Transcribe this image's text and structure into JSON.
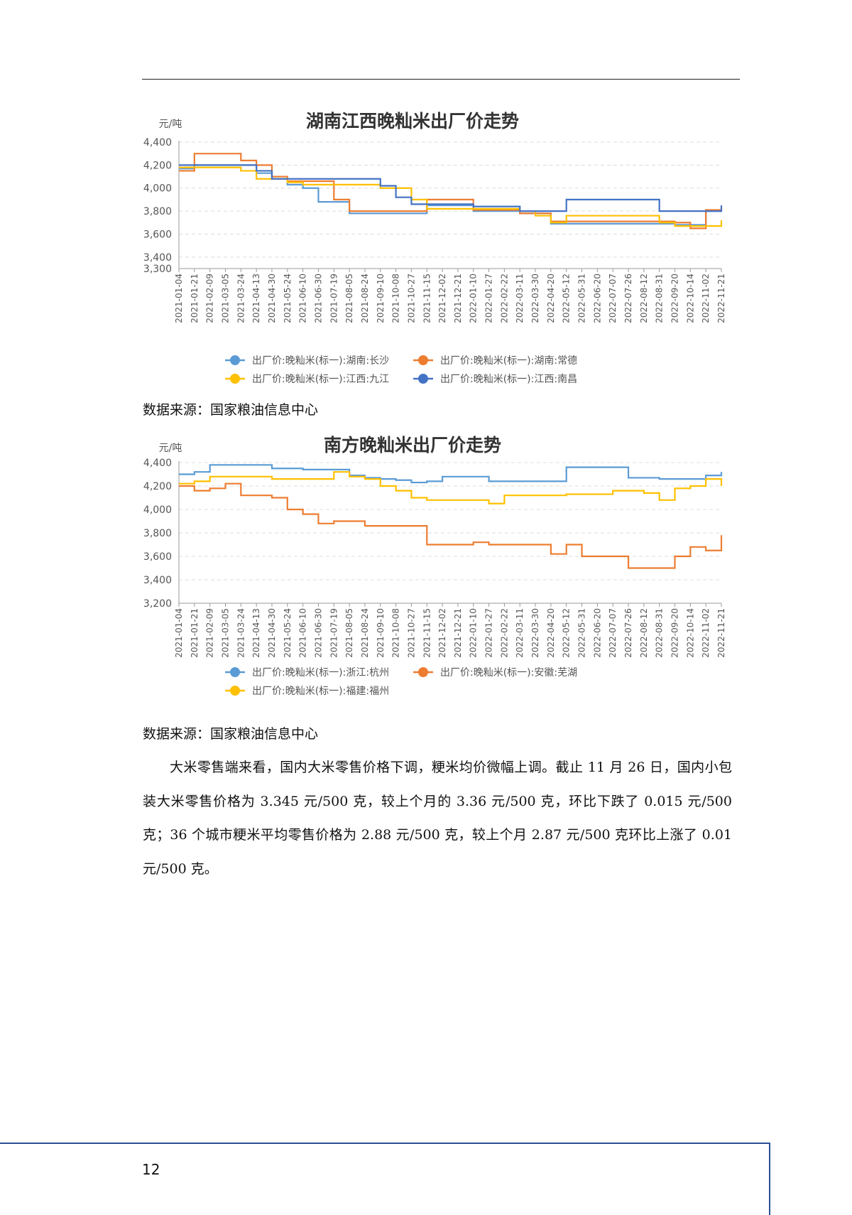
{
  "page_number": "12",
  "source_1": "数据来源：国家粮油信息中心",
  "source_2": "数据来源：国家粮油信息中心",
  "paragraph": "大米零售端来看，国内大米零售价格下调，粳米均价微幅上调。截止 11 月 26 日，国内小包装大米零售价格为 3.345 元/500 克，较上个月的 3.36 元/500 克，环比下跌了 0.015 元/500 克；36 个城市粳米平均零售价格为 2.88 元/500 克，较上个月 2.87 元/500 克环比上涨了 0.01 元/500 克。",
  "chart_data": [
    {
      "type": "line",
      "title": "湖南江西晚籼米出厂价走势",
      "ylabel": "元/吨",
      "ylim": [
        3300,
        4400
      ],
      "yticks": [
        4400,
        4200,
        4000,
        3800,
        3600,
        3400,
        3300
      ],
      "x": [
        "2021-01-04",
        "2021-01-21",
        "2021-02-09",
        "2021-03-05",
        "2021-03-24",
        "2021-04-13",
        "2021-04-30",
        "2021-05-24",
        "2021-06-10",
        "2021-06-30",
        "2021-07-19",
        "2021-08-05",
        "2021-08-24",
        "2021-09-10",
        "2021-10-08",
        "2021-10-27",
        "2021-11-15",
        "2021-12-02",
        "2021-12-21",
        "2022-01-10",
        "2022-01-27",
        "2022-02-22",
        "2022-03-11",
        "2022-03-30",
        "2022-04-20",
        "2022-05-12",
        "2022-05-31",
        "2022-06-20",
        "2022-07-07",
        "2022-07-26",
        "2022-08-12",
        "2022-08-31",
        "2022-09-20",
        "2022-10-14",
        "2022-11-02",
        "2022-11-21"
      ],
      "grid": true,
      "legend_position": "bottom",
      "series": [
        {
          "name": "出厂价:晚籼米(标一):湖南:长沙",
          "color": "#5b9bd5",
          "values": [
            4170,
            4200,
            4200,
            4200,
            4200,
            4130,
            4080,
            4030,
            4000,
            3880,
            3880,
            3780,
            3780,
            3780,
            3780,
            3780,
            3850,
            3850,
            3850,
            3800,
            3800,
            3800,
            3780,
            3780,
            3690,
            3690,
            3690,
            3690,
            3690,
            3690,
            3690,
            3690,
            3680,
            3680,
            3800,
            3800
          ]
        },
        {
          "name": "出厂价:晚籼米(标一):湖南:常德",
          "color": "#ed7d31",
          "values": [
            4150,
            4300,
            4300,
            4300,
            4240,
            4200,
            4100,
            4060,
            4060,
            4060,
            3900,
            3800,
            3800,
            3800,
            3800,
            3800,
            3900,
            3900,
            3900,
            3810,
            3810,
            3810,
            3780,
            3780,
            3710,
            3710,
            3710,
            3710,
            3710,
            3710,
            3710,
            3710,
            3700,
            3650,
            3810,
            3810
          ]
        },
        {
          "name": "出厂价:晚籼米(标一):江西:九江",
          "color": "#ffc000",
          "values": [
            4180,
            4180,
            4180,
            4180,
            4150,
            4080,
            4080,
            4050,
            4030,
            4030,
            4030,
            4030,
            4030,
            4000,
            4000,
            3900,
            3820,
            3820,
            3820,
            3820,
            3820,
            3820,
            3800,
            3760,
            3700,
            3760,
            3760,
            3760,
            3760,
            3760,
            3760,
            3700,
            3670,
            3670,
            3670,
            3720
          ]
        },
        {
          "name": "出厂价:晚籼米(标一):江西:南昌",
          "color": "#4472c4",
          "values": [
            4200,
            4200,
            4200,
            4200,
            4200,
            4150,
            4080,
            4080,
            4080,
            4080,
            4080,
            4080,
            4080,
            4020,
            3920,
            3860,
            3860,
            3860,
            3860,
            3840,
            3840,
            3840,
            3800,
            3800,
            3800,
            3900,
            3900,
            3900,
            3900,
            3900,
            3900,
            3800,
            3800,
            3800,
            3800,
            3850
          ]
        }
      ]
    },
    {
      "type": "line",
      "title": "南方晚籼米出厂价走势",
      "ylabel": "元/吨",
      "ylim": [
        3200,
        4400
      ],
      "yticks": [
        4400,
        4200,
        4000,
        3800,
        3600,
        3400,
        3200
      ],
      "x": [
        "2021-01-04",
        "2021-01-21",
        "2021-02-09",
        "2021-03-05",
        "2021-03-24",
        "2021-04-13",
        "2021-04-30",
        "2021-05-24",
        "2021-06-10",
        "2021-06-30",
        "2021-07-19",
        "2021-08-05",
        "2021-08-24",
        "2021-09-10",
        "2021-10-08",
        "2021-10-27",
        "2021-11-15",
        "2021-12-02",
        "2021-12-21",
        "2022-01-10",
        "2022-01-27",
        "2022-02-22",
        "2022-03-11",
        "2022-03-30",
        "2022-04-20",
        "2022-05-12",
        "2022-05-31",
        "2022-06-20",
        "2022-07-07",
        "2022-07-26",
        "2022-08-12",
        "2022-08-31",
        "2022-09-20",
        "2022-10-14",
        "2022-11-02",
        "2022-11-21"
      ],
      "grid": true,
      "legend_position": "bottom",
      "series": [
        {
          "name": "出厂价:晚籼米(标一):浙江:杭州",
          "color": "#5b9bd5",
          "values": [
            4300,
            4320,
            4380,
            4380,
            4380,
            4380,
            4350,
            4350,
            4340,
            4340,
            4340,
            4290,
            4270,
            4260,
            4250,
            4230,
            4240,
            4280,
            4280,
            4280,
            4240,
            4240,
            4240,
            4240,
            4240,
            4360,
            4360,
            4360,
            4360,
            4270,
            4270,
            4260,
            4260,
            4260,
            4290,
            4320
          ]
        },
        {
          "name": "出厂价:晚籼米(标一):安徽:芜湖",
          "color": "#ed7d31",
          "values": [
            4200,
            4160,
            4180,
            4220,
            4120,
            4120,
            4100,
            4000,
            3960,
            3880,
            3900,
            3900,
            3860,
            3860,
            3860,
            3860,
            3700,
            3700,
            3700,
            3720,
            3700,
            3700,
            3700,
            3700,
            3620,
            3700,
            3600,
            3600,
            3600,
            3500,
            3500,
            3500,
            3600,
            3680,
            3650,
            3780
          ]
        },
        {
          "name": "出厂价:晚籼米(标一):福建:福州",
          "color": "#ffc000",
          "values": [
            4220,
            4240,
            4280,
            4280,
            4280,
            4280,
            4260,
            4260,
            4260,
            4260,
            4320,
            4280,
            4260,
            4200,
            4160,
            4100,
            4080,
            4080,
            4080,
            4080,
            4050,
            4120,
            4120,
            4120,
            4120,
            4130,
            4130,
            4130,
            4160,
            4160,
            4140,
            4080,
            4180,
            4200,
            4260,
            4200
          ]
        }
      ]
    }
  ]
}
